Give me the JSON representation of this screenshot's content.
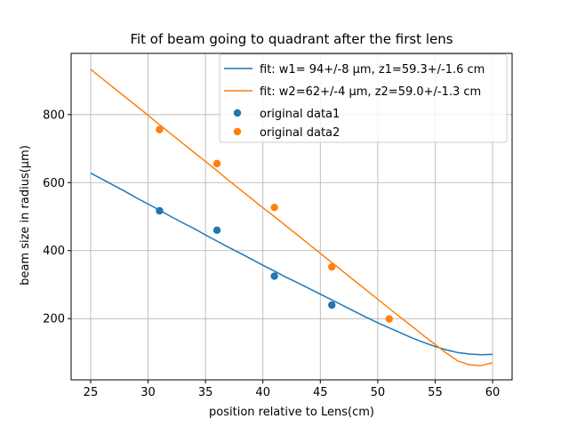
{
  "chart_data": {
    "type": "scatter",
    "title": "Fit of beam going to quadrant after the first lens",
    "xlabel": "position relative to Lens(cm)",
    "ylabel": "beam size in radius(μm)",
    "xlim": [
      23.3,
      61.7
    ],
    "ylim": [
      20,
      980
    ],
    "x_ticks": [
      25,
      30,
      35,
      40,
      45,
      50,
      55,
      60
    ],
    "y_ticks": [
      200,
      400,
      600,
      800
    ],
    "grid": true,
    "legend_position": "top-right",
    "colors": {
      "series1": "#1f77b4",
      "series2": "#ff7f0e"
    },
    "fits": [
      {
        "name": "fit: w1= 94+/-8 μm, z1=59.3+/-1.6 cm",
        "color": "#1f77b4",
        "w0": 94,
        "z0": 59.3,
        "x": [
          25,
          26,
          27,
          28,
          29,
          30,
          31,
          32,
          33,
          34,
          35,
          36,
          37,
          38,
          39,
          40,
          41,
          42,
          43,
          44,
          45,
          46,
          47,
          48,
          49,
          50,
          51,
          52,
          53,
          54,
          55,
          56,
          57,
          58,
          59,
          60
        ],
        "y": [
          628,
          610,
          592,
          574,
          555,
          537,
          519,
          500,
          482,
          465,
          446,
          428,
          410,
          393,
          375,
          357,
          340,
          322,
          306,
          289,
          272,
          255,
          238,
          221,
          204,
          188,
          173,
          158,
          143,
          130,
          118,
          108,
          100,
          96,
          94,
          95
        ]
      },
      {
        "name": "fit: w2=62+/-4 μm, z2=59.0+/-1.3 cm",
        "color": "#ff7f0e",
        "w0": 62,
        "z0": 59.0,
        "x": [
          25,
          26,
          27,
          28,
          29,
          30,
          31,
          32,
          33,
          34,
          35,
          36,
          37,
          38,
          39,
          40,
          41,
          42,
          43,
          44,
          45,
          46,
          47,
          48,
          49,
          50,
          51,
          52,
          53,
          54,
          55,
          56,
          57,
          58,
          59,
          60
        ],
        "y": [
          933,
          906,
          879,
          852,
          825,
          798,
          770,
          743,
          716,
          689,
          662,
          635,
          607,
          580,
          553,
          526,
          500,
          473,
          446,
          419,
          392,
          365,
          338,
          311,
          284,
          257,
          230,
          203,
          177,
          150,
          124,
          98,
          75,
          64,
          62,
          70
        ]
      }
    ],
    "series": [
      {
        "name": "original data1",
        "color": "#1f77b4",
        "x": [
          31,
          36,
          41,
          46
        ],
        "y": [
          517,
          460,
          325,
          240
        ]
      },
      {
        "name": "original data2",
        "color": "#ff7f0e",
        "x": [
          31,
          36,
          41,
          46,
          51
        ],
        "y": [
          756,
          656,
          527,
          352,
          199
        ]
      }
    ]
  }
}
